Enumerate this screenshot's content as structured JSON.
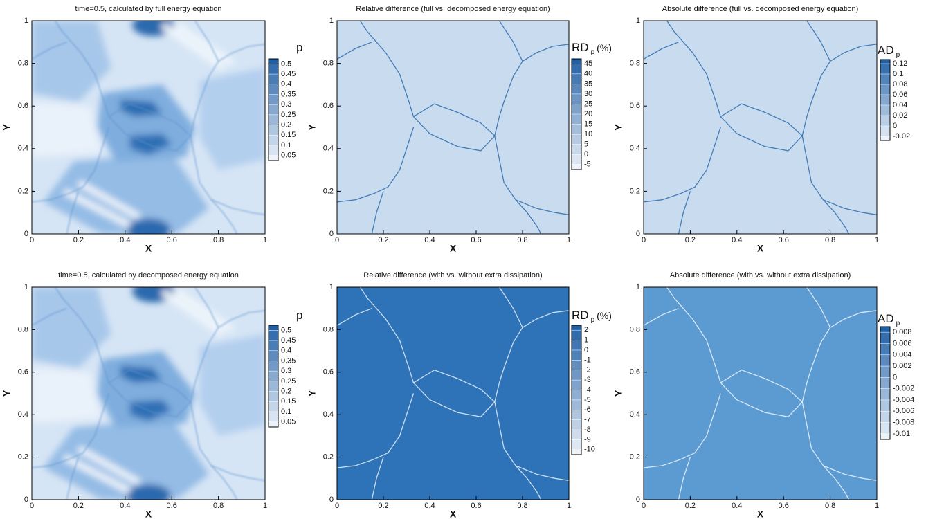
{
  "chart_data": [
    {
      "type": "contour",
      "title": "time=0.5, calculated by full energy equation",
      "x_label": "X",
      "y_label": "Y",
      "xlim": [
        0,
        1
      ],
      "ylim": [
        0,
        1
      ],
      "xticks": [
        0,
        0.2,
        0.4,
        0.6,
        0.8,
        1
      ],
      "yticks": [
        0,
        0.2,
        0.4,
        0.6,
        0.8,
        1
      ],
      "colorbar": {
        "title": "p",
        "clim": [
          0.025,
          0.525
        ],
        "ticks": [
          0.5,
          0.45,
          0.4,
          0.35,
          0.3,
          0.25,
          0.2,
          0.15,
          0.1,
          0.05
        ],
        "colors": [
          "#eef3fa",
          "#1f5fa6"
        ]
      }
    },
    {
      "type": "contour",
      "title": "Relative difference (full vs. decomposed energy equation)",
      "x_label": "X",
      "y_label": "Y",
      "xlim": [
        0,
        1
      ],
      "ylim": [
        0,
        1
      ],
      "xticks": [
        0,
        0.2,
        0.4,
        0.6,
        0.8,
        1
      ],
      "yticks": [
        0,
        0.2,
        0.4,
        0.6,
        0.8,
        1
      ],
      "colorbar": {
        "title": "RD",
        "subscript": "p",
        "unit": "(%)",
        "clim": [
          -7.5,
          47.5
        ],
        "ticks": [
          45,
          40,
          35,
          30,
          25,
          20,
          15,
          10,
          5,
          0,
          -5
        ],
        "colors": [
          "#eef3fa",
          "#1f5fa6"
        ]
      }
    },
    {
      "type": "contour",
      "title": "Absolute difference (full vs. decomposed energy equation)",
      "x_label": "X",
      "y_label": "Y",
      "xlim": [
        0,
        1
      ],
      "ylim": [
        0,
        1
      ],
      "xticks": [
        0,
        0.2,
        0.4,
        0.6,
        0.8,
        1
      ],
      "yticks": [
        0,
        0.2,
        0.4,
        0.6,
        0.8,
        1
      ],
      "colorbar": {
        "title": "AD",
        "subscript": "p",
        "clim": [
          -0.028,
          0.128
        ],
        "ticks": [
          0.12,
          0.1,
          0.08,
          0.06,
          0.04,
          0.02,
          0,
          -0.02
        ],
        "colors": [
          "#eef3fa",
          "#1f5fa6"
        ]
      }
    },
    {
      "type": "contour",
      "title": "time=0.5, calculated by decomposed energy equation",
      "x_label": "X",
      "y_label": "Y",
      "xlim": [
        0,
        1
      ],
      "ylim": [
        0,
        1
      ],
      "xticks": [
        0,
        0.2,
        0.4,
        0.6,
        0.8,
        1
      ],
      "yticks": [
        0,
        0.2,
        0.4,
        0.6,
        0.8,
        1
      ],
      "colorbar": {
        "title": "p",
        "clim": [
          0.025,
          0.525
        ],
        "ticks": [
          0.5,
          0.45,
          0.4,
          0.35,
          0.3,
          0.25,
          0.2,
          0.15,
          0.1,
          0.05
        ],
        "colors": [
          "#eef3fa",
          "#1f5fa6"
        ]
      }
    },
    {
      "type": "contour",
      "title": "Relative difference (with vs. without extra dissipation)",
      "x_label": "X",
      "y_label": "Y",
      "xlim": [
        0,
        1
      ],
      "ylim": [
        0,
        1
      ],
      "xticks": [
        0,
        0.2,
        0.4,
        0.6,
        0.8,
        1
      ],
      "yticks": [
        0,
        0.2,
        0.4,
        0.6,
        0.8,
        1
      ],
      "colorbar": {
        "title": "RD",
        "subscript": "p",
        "unit": "(%)",
        "clim": [
          -10.5,
          2.5
        ],
        "ticks": [
          2,
          1,
          0,
          -1,
          -2,
          -3,
          -4,
          -5,
          -6,
          -7,
          -8,
          -9,
          -10
        ],
        "colors": [
          "#eef3fa",
          "#1f5fa6"
        ]
      }
    },
    {
      "type": "contour",
      "title": "Absolute difference (with vs. without extra dissipation)",
      "x_label": "X",
      "y_label": "Y",
      "xlim": [
        0,
        1
      ],
      "ylim": [
        0,
        1
      ],
      "xticks": [
        0,
        0.2,
        0.4,
        0.6,
        0.8,
        1
      ],
      "yticks": [
        0,
        0.2,
        0.4,
        0.6,
        0.8,
        1
      ],
      "colorbar": {
        "title": "AD",
        "subscript": "p",
        "clim": [
          -0.011,
          0.009
        ],
        "ticks": [
          0.008,
          0.006,
          0.004,
          0.002,
          0,
          -0.002,
          -0.004,
          -0.006,
          -0.008,
          -0.01
        ],
        "colors": [
          "#eef3fa",
          "#1f5fa6"
        ]
      }
    }
  ]
}
